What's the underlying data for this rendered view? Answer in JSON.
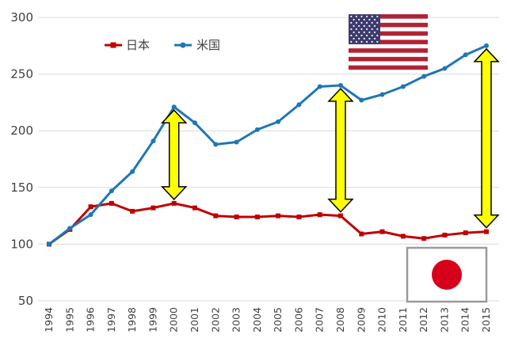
{
  "chart_data": {
    "type": "line",
    "title": "",
    "xlabel": "",
    "ylabel": "",
    "x": [
      "1994",
      "1995",
      "1996",
      "1997",
      "1998",
      "1999",
      "2000",
      "2001",
      "2002",
      "2003",
      "2004",
      "2005",
      "2006",
      "2007",
      "2008",
      "2009",
      "2010",
      "2011",
      "2012",
      "2013",
      "2014",
      "2015"
    ],
    "ylim": [
      50,
      300
    ],
    "yticks": [
      "50",
      "100",
      "150",
      "200",
      "250",
      "300"
    ],
    "grid": "horizontal",
    "legend_position": "top-left",
    "series": [
      {
        "name": "日本",
        "color": "#c00000",
        "marker": "square",
        "values": [
          100,
          113,
          133,
          136,
          129,
          132,
          136,
          132,
          125,
          124,
          124,
          125,
          124,
          126,
          125,
          109,
          111,
          107,
          105,
          108,
          110,
          111
        ]
      },
      {
        "name": "米国",
        "color": "#1f77b4",
        "marker": "circle",
        "values": [
          100,
          114,
          126,
          147,
          164,
          191,
          221,
          207,
          188,
          190,
          201,
          208,
          223,
          239,
          240,
          227,
          232,
          239,
          248,
          255,
          267,
          275
        ]
      }
    ],
    "annotations": [
      {
        "type": "double-arrow",
        "x": "2000",
        "y_from": 136,
        "y_to": 221,
        "color": "#ffff00"
      },
      {
        "type": "double-arrow",
        "x": "2008",
        "y_from": 125,
        "y_to": 240,
        "color": "#ffff00"
      },
      {
        "type": "double-arrow",
        "x": "2015",
        "y_from": 111,
        "y_to": 275,
        "color": "#ffff00"
      }
    ],
    "images": [
      {
        "name": "us-flag",
        "position": "top-right"
      },
      {
        "name": "japan-flag",
        "position": "bottom-right"
      }
    ]
  }
}
